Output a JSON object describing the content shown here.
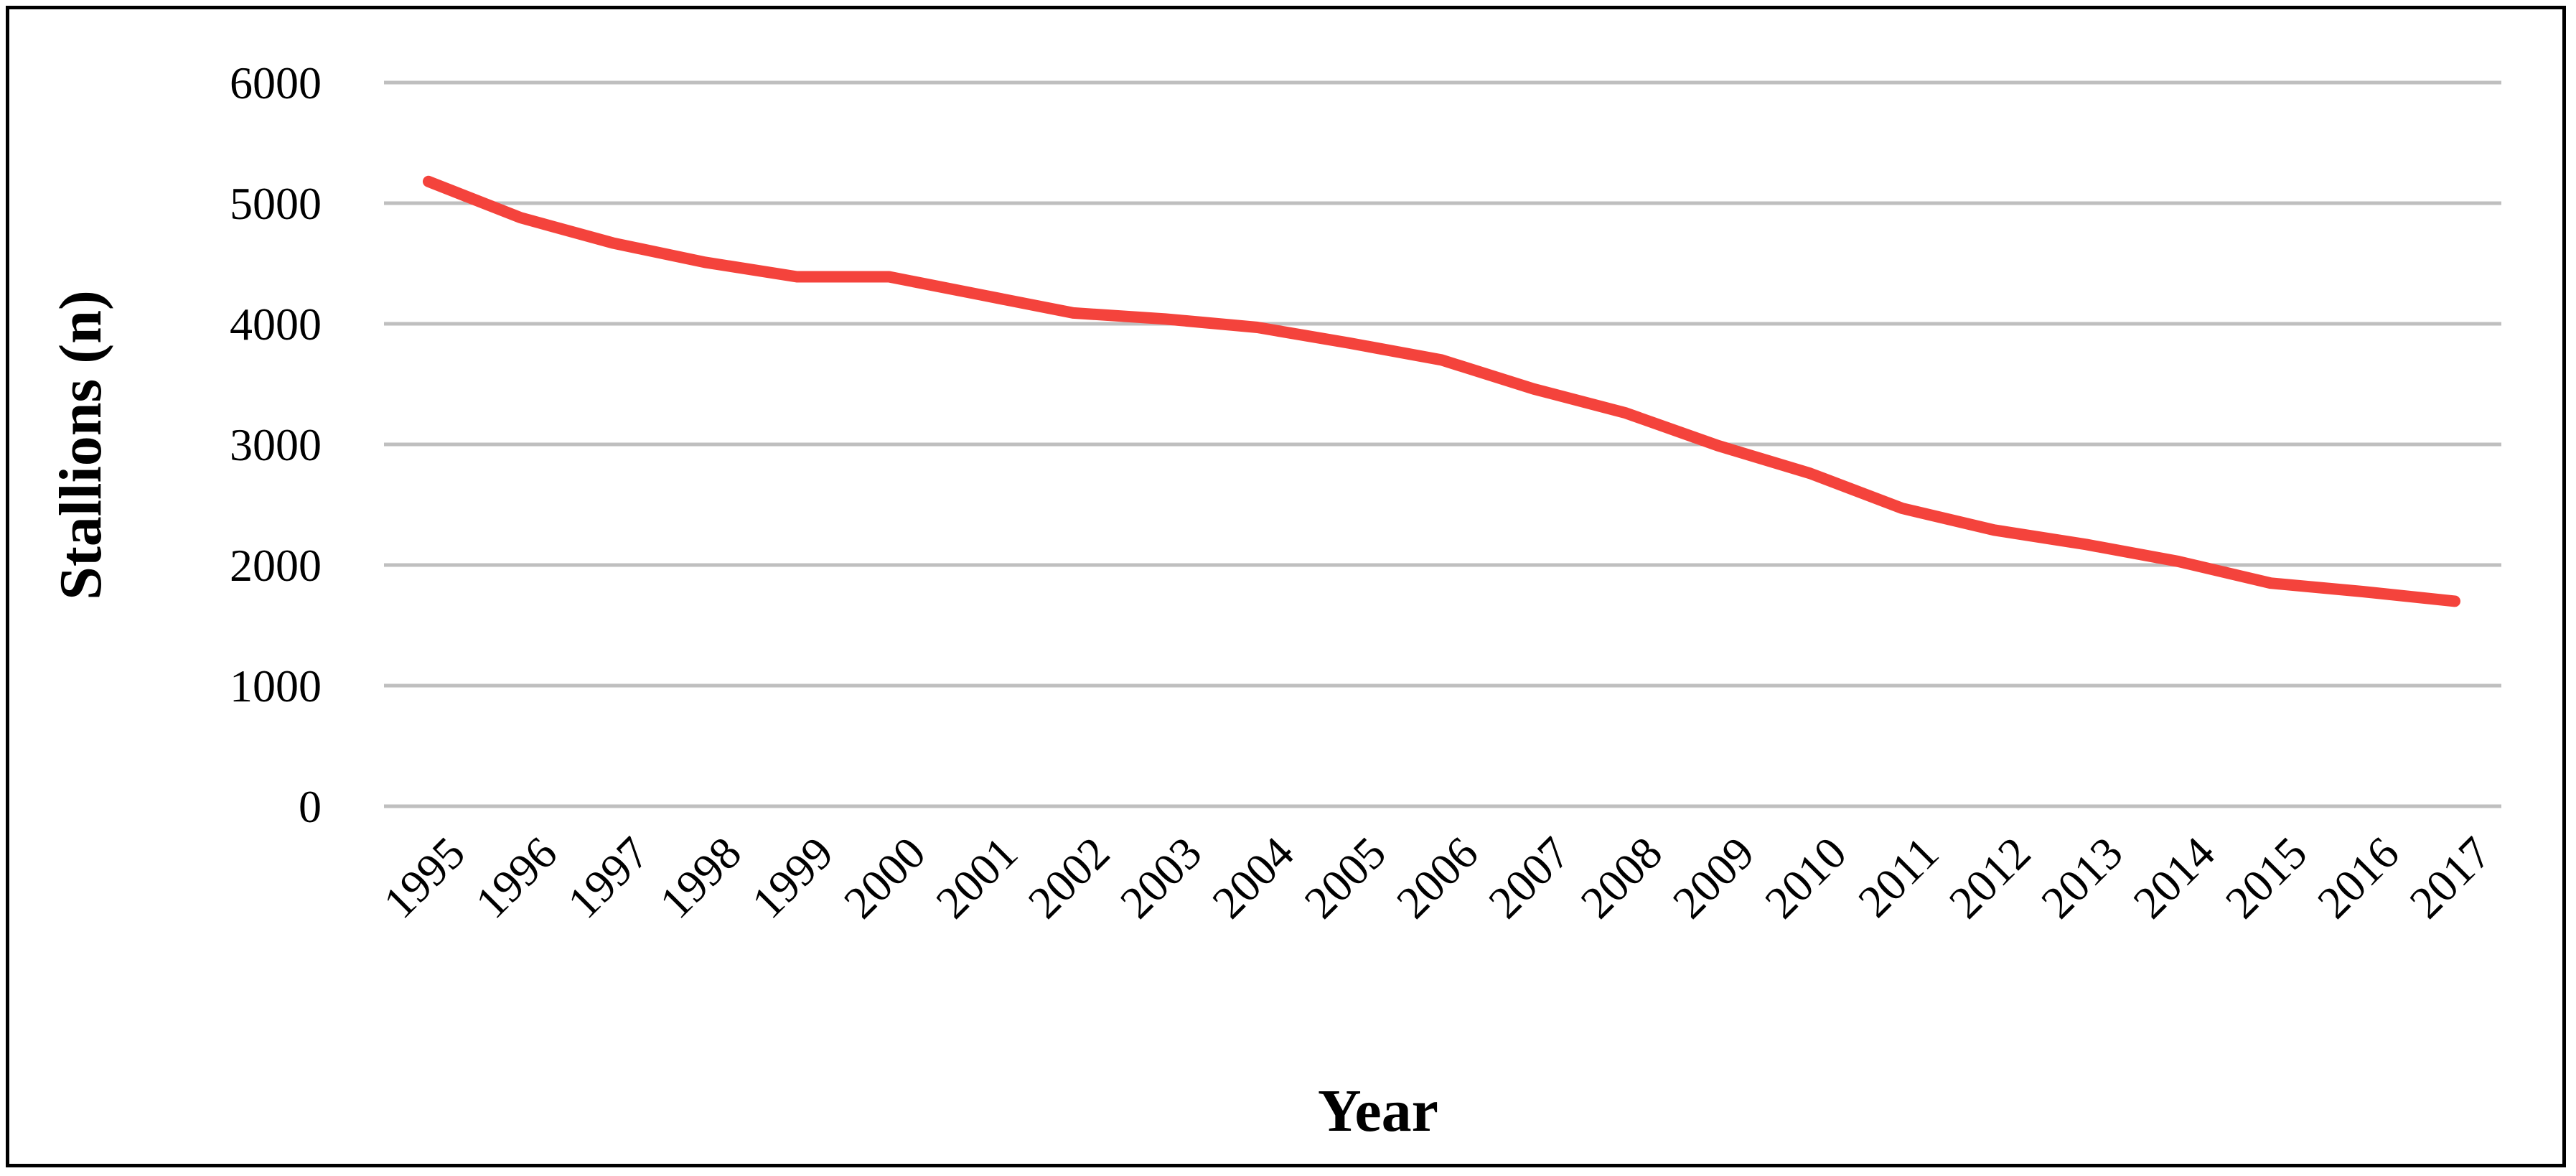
{
  "chart_data": {
    "type": "line",
    "title": "",
    "xlabel": "Year",
    "ylabel": "Stallions (n)",
    "ylim": [
      0,
      6000
    ],
    "yticks": [
      0,
      1000,
      2000,
      3000,
      4000,
      5000,
      6000
    ],
    "grid": true,
    "legend": "none",
    "categories": [
      "1995",
      "1996",
      "1997",
      "1998",
      "1999",
      "2000",
      "2001",
      "2002",
      "2003",
      "2004",
      "2005",
      "2006",
      "2007",
      "2008",
      "2009",
      "2010",
      "2011",
      "2012",
      "2013",
      "2014",
      "2015",
      "2016",
      "2017"
    ],
    "series": [
      {
        "color": "#f4433c",
        "values": [
          5180,
          4880,
          4670,
          4510,
          4390,
          4390,
          4240,
          4090,
          4040,
          3970,
          3840,
          3700,
          3460,
          3260,
          2990,
          2760,
          2470,
          2290,
          2170,
          2030,
          1850,
          1780,
          1700
        ]
      }
    ]
  }
}
